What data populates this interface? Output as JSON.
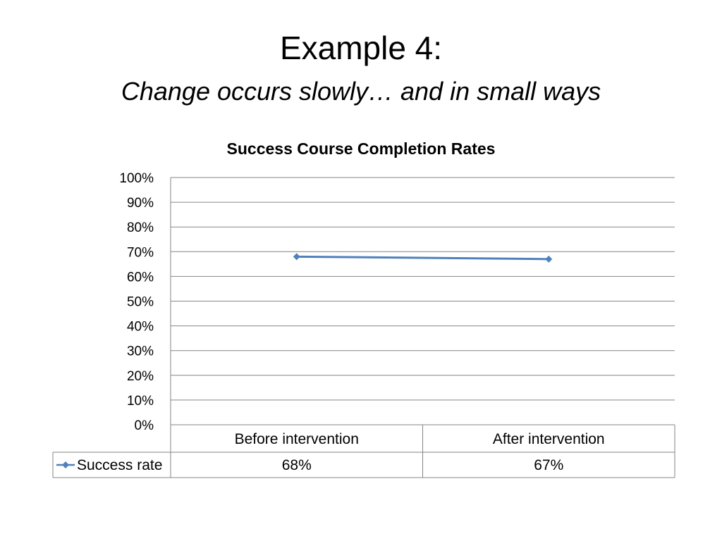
{
  "slide": {
    "title": "Example 4:",
    "subtitle": "Change occurs slowly… and in small ways"
  },
  "colors": {
    "series": "#4f81bd",
    "grid": "#868686",
    "text": "#000000"
  },
  "chart_data": {
    "type": "line",
    "title": "Success Course Completion Rates",
    "categories": [
      "Before intervention",
      "After intervention"
    ],
    "series": [
      {
        "name": "Success rate",
        "values": [
          0.68,
          0.67
        ],
        "value_labels": [
          "68%",
          "67%"
        ]
      }
    ],
    "y_ticks": [
      "0%",
      "10%",
      "20%",
      "30%",
      "40%",
      "50%",
      "60%",
      "70%",
      "80%",
      "90%",
      "100%"
    ],
    "ylim": [
      0,
      1
    ],
    "grid": true,
    "legend": "data table",
    "marker": "diamond"
  }
}
